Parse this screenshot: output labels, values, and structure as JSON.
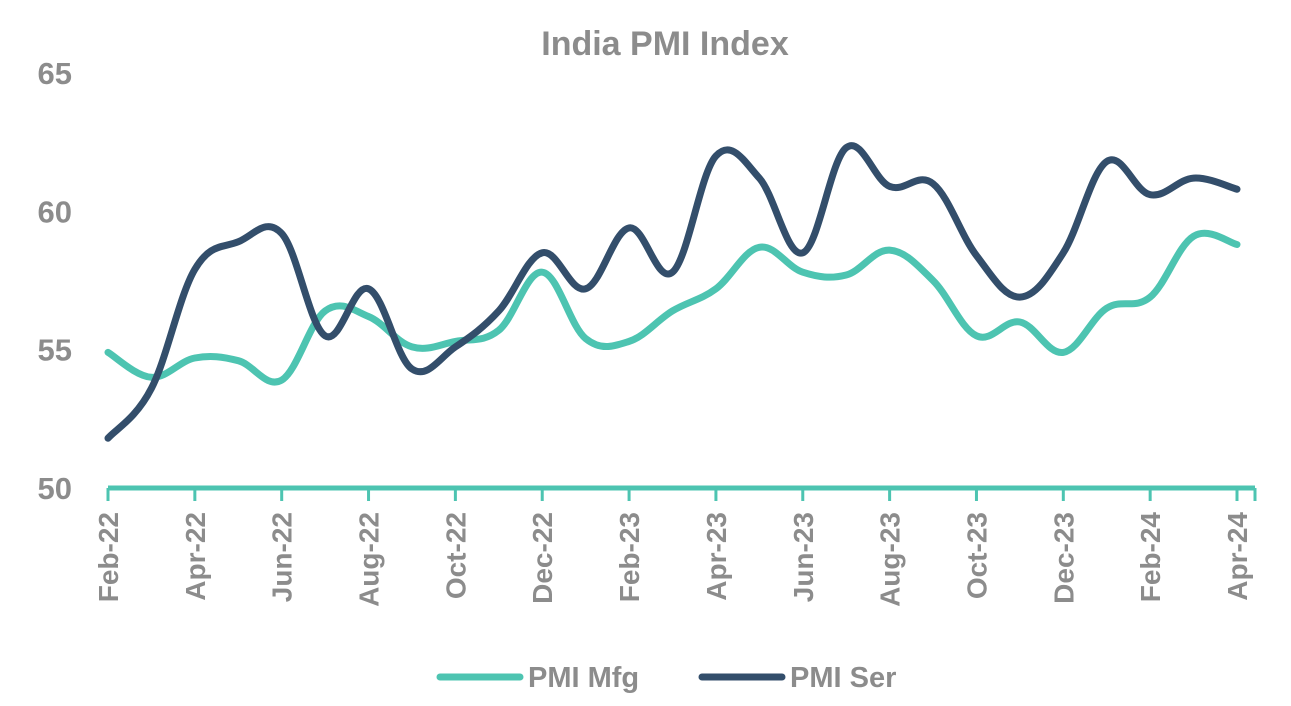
{
  "chart_data": {
    "type": "line",
    "title": "India PMI Index",
    "xlabel": "",
    "ylabel": "",
    "ylim": [
      50,
      65
    ],
    "yticks": [
      50,
      55,
      60,
      65
    ],
    "grid": false,
    "legend": "bottom",
    "x": [
      "Feb-22",
      "Mar-22",
      "Apr-22",
      "May-22",
      "Jun-22",
      "Jul-22",
      "Aug-22",
      "Sep-22",
      "Oct-22",
      "Nov-22",
      "Dec-22",
      "Jan-23",
      "Feb-23",
      "Mar-23",
      "Apr-23",
      "May-23",
      "Jun-23",
      "Jul-23",
      "Aug-23",
      "Sep-23",
      "Oct-23",
      "Nov-23",
      "Dec-23",
      "Jan-24",
      "Feb-24",
      "Mar-24",
      "Apr-24"
    ],
    "x_tick_labels": [
      "Feb-22",
      "Apr-22",
      "Jun-22",
      "Aug-22",
      "Oct-22",
      "Dec-22",
      "Feb-23",
      "Apr-23",
      "Jun-23",
      "Aug-23",
      "Oct-23",
      "Dec-23",
      "Feb-24",
      "Apr-24"
    ],
    "series": [
      {
        "name": "PMI Mfg",
        "color": "#4dc4b1",
        "values": [
          54.9,
          54.0,
          54.7,
          54.6,
          53.9,
          56.4,
          56.2,
          55.1,
          55.3,
          55.7,
          57.8,
          55.4,
          55.3,
          56.4,
          57.2,
          58.7,
          57.8,
          57.7,
          58.6,
          57.5,
          55.5,
          56.0,
          54.9,
          56.5,
          56.9,
          59.1,
          58.8
        ]
      },
      {
        "name": "PMI Ser",
        "color": "#334e6b",
        "values": [
          51.8,
          53.6,
          57.9,
          58.9,
          59.2,
          55.5,
          57.2,
          54.3,
          55.1,
          56.4,
          58.5,
          57.2,
          59.4,
          57.8,
          62.0,
          61.2,
          58.5,
          62.3,
          60.9,
          61.0,
          58.4,
          56.9,
          58.5,
          61.8,
          60.6,
          61.2,
          60.8
        ]
      }
    ]
  }
}
